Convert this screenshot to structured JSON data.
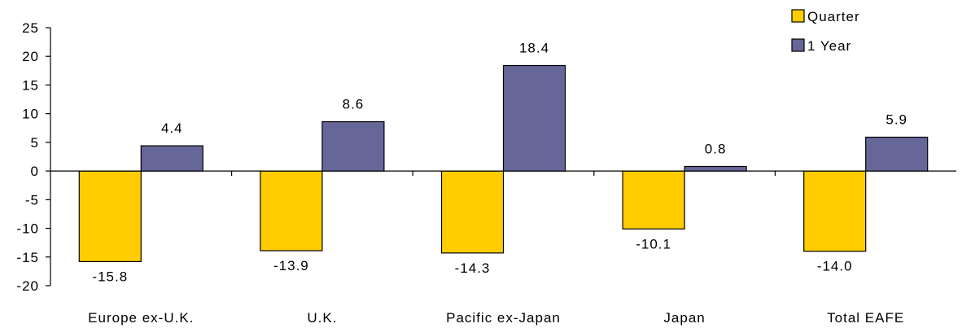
{
  "chart_data": {
    "type": "bar",
    "categories": [
      "Europe ex-U.K.",
      "U.K.",
      "Pacific ex-Japan",
      "Japan",
      "Total EAFE"
    ],
    "series": [
      {
        "name": "Quarter",
        "values": [
          -15.8,
          -13.9,
          -14.3,
          -10.1,
          -14.0
        ],
        "labels": [
          "-15.8",
          "-13.9",
          "-14.3",
          "-10.1",
          "-14.0"
        ],
        "color": "#FFCC00"
      },
      {
        "name": "1 Year",
        "values": [
          4.4,
          8.6,
          18.4,
          0.8,
          5.9
        ],
        "labels": [
          "4.4",
          "8.6",
          "18.4",
          "0.8",
          "5.9"
        ],
        "color": "#666699"
      }
    ],
    "ylim": [
      -20,
      25
    ],
    "yticks": [
      "-20",
      "-15",
      "-10",
      "-5",
      "0",
      "5",
      "10",
      "15",
      "20",
      "25"
    ],
    "grid": false,
    "legend_position": "top-right",
    "title": "",
    "xlabel": "",
    "ylabel": ""
  }
}
